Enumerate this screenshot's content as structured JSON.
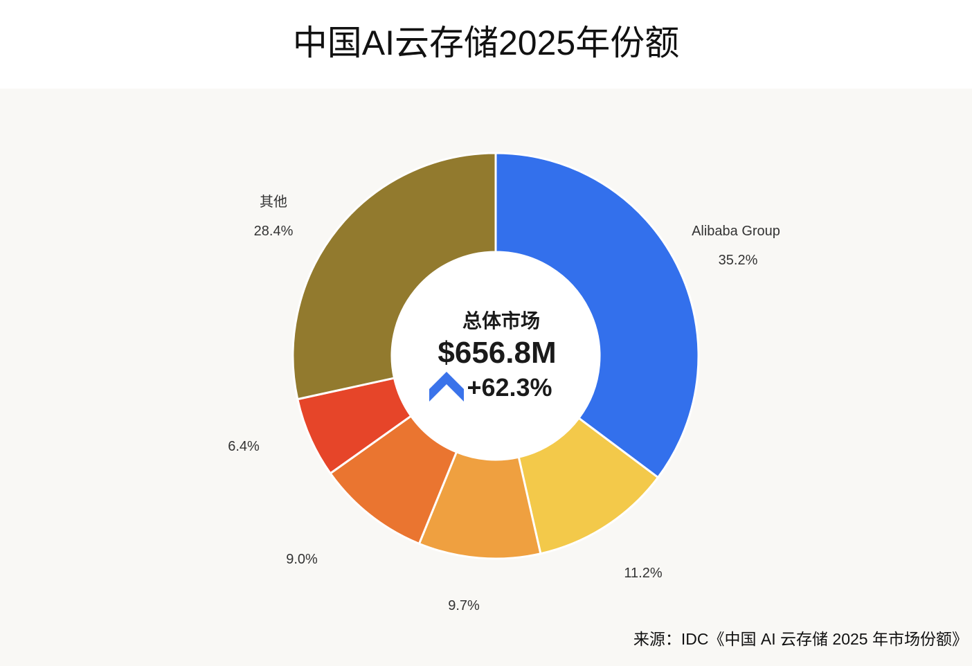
{
  "title": "中国AI云存储2025年份额",
  "source": "来源：IDC《中国 AI 云存储 2025 年市场份额》",
  "center": {
    "label": "总体市场",
    "total": "$656.8M",
    "growth": "+62.3%",
    "growth_icon": "up-chevron-icon",
    "growth_icon_color": "#3a73ea"
  },
  "chart_data": {
    "type": "pie",
    "variant": "donut",
    "slices": [
      {
        "name": "Alibaba Group",
        "value": 35.2,
        "label": "35.2%",
        "color": "#3370ec"
      },
      {
        "name": "",
        "value": 11.2,
        "label": "11.2%",
        "color": "#f3c94a"
      },
      {
        "name": "",
        "value": 9.7,
        "label": "9.7%",
        "color": "#efa040"
      },
      {
        "name": "",
        "value": 9.0,
        "label": "9.0%",
        "color": "#ea7530"
      },
      {
        "name": "",
        "value": 6.4,
        "label": "6.4%",
        "color": "#e64529"
      },
      {
        "name": "其他",
        "value": 28.4,
        "label": "28.4%",
        "color": "#927a2e"
      }
    ]
  }
}
